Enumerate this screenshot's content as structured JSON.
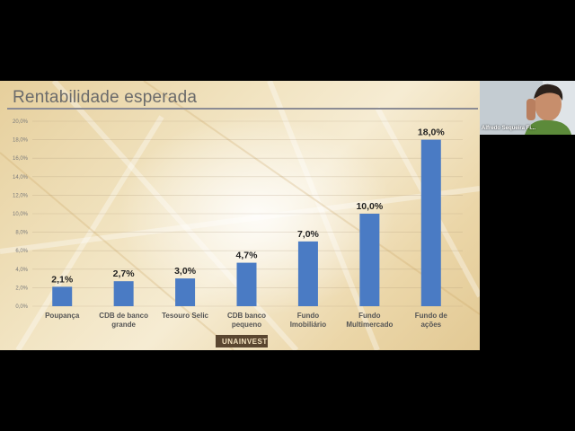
{
  "slide": {
    "title": "Rentabilidade esperada",
    "logo_text": "UNAINVEST"
  },
  "participant": {
    "name": "Alfredo Sequeira Fi..."
  },
  "colors": {
    "bar": "#4a7bc4",
    "title_rule": "#8c8c94"
  },
  "chart_data": {
    "type": "bar",
    "categories": [
      [
        "Poupança"
      ],
      [
        "CDB de banco",
        "grande"
      ],
      [
        "Tesouro Selic"
      ],
      [
        "CDB banco",
        "pequeno"
      ],
      [
        "Fundo",
        "Imobiliário"
      ],
      [
        "Fundo",
        "Multimercado"
      ],
      [
        "Fundo de",
        "ações"
      ]
    ],
    "values": [
      2.1,
      2.7,
      3.0,
      4.7,
      7.0,
      10.0,
      18.0
    ],
    "data_labels": [
      "2,1%",
      "2,7%",
      "3,0%",
      "4,7%",
      "7,0%",
      "10,0%",
      "18,0%"
    ],
    "yticks": [
      "0,0%",
      "2,0%",
      "4,0%",
      "6,0%",
      "8,0%",
      "10,0%",
      "12,0%",
      "14,0%",
      "16,0%",
      "18,0%",
      "20,0%"
    ],
    "ylim": [
      0,
      20
    ],
    "title": "Rentabilidade esperada",
    "xlabel": "",
    "ylabel": "",
    "grid": true,
    "legend": "none"
  }
}
